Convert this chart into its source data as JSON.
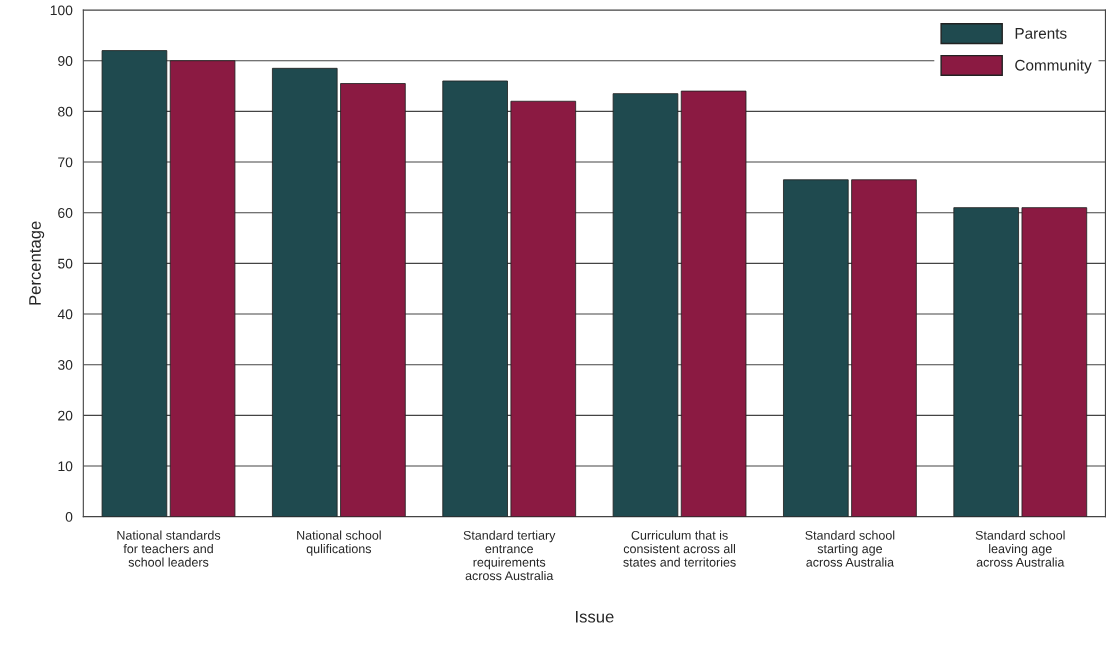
{
  "chart_data": {
    "type": "bar",
    "categories": [
      "National standards\nfor teachers and\nschool leaders",
      "National school\nqulifications",
      "Standard tertiary\nentrance\nrequirements\nacross Australia",
      "Curriculum that is\nconsistent across all\nstates and territories",
      "Standard school\nstarting age\nacross Australia",
      "Standard school\nleaving age\nacross Australia"
    ],
    "series": [
      {
        "name": "Parents",
        "color": "#1f4a4f",
        "values": [
          92,
          88.5,
          86,
          83.5,
          66.5,
          61
        ]
      },
      {
        "name": "Community",
        "color": "#8b1a42",
        "values": [
          90,
          85.5,
          82,
          84,
          66.5,
          61
        ]
      }
    ],
    "xlabel": "Issue",
    "ylabel": "Percentage",
    "ylim": [
      0,
      100
    ],
    "yticks": [
      0,
      10,
      20,
      30,
      40,
      50,
      60,
      70,
      80,
      90,
      100
    ],
    "grid": "y",
    "legend": "top right"
  }
}
